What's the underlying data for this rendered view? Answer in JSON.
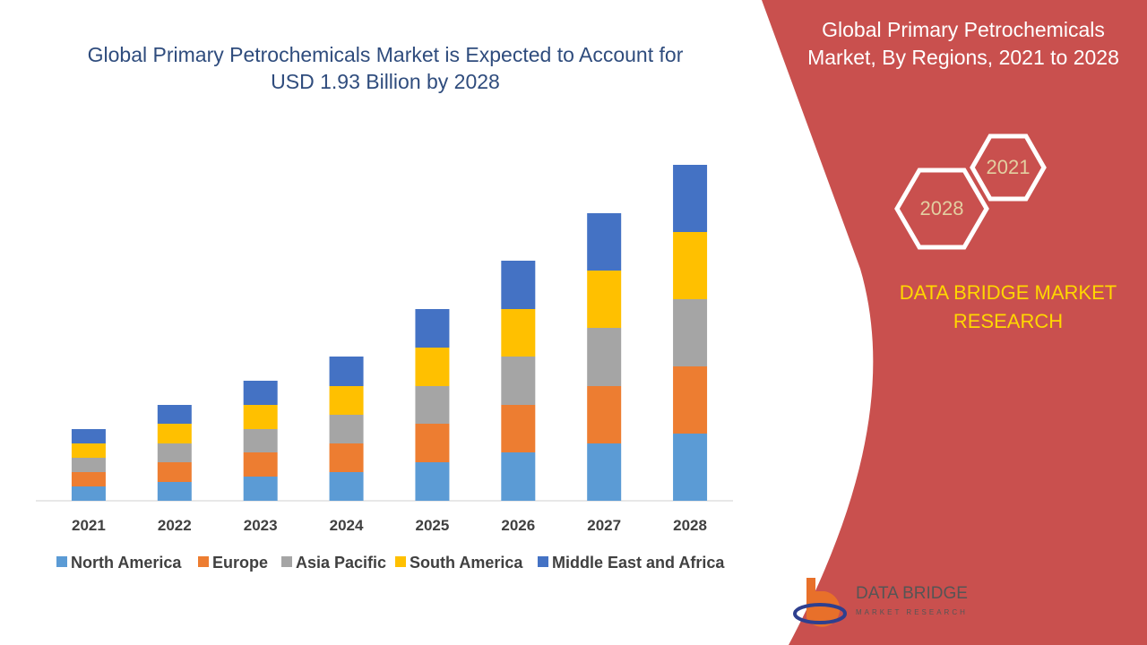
{
  "chart_data": {
    "type": "bar",
    "stacked": true,
    "title": "Global Primary Petrochemicals Market is Expected to Account for USD 1.93 Billion by 2028",
    "categories": [
      "2021",
      "2022",
      "2023",
      "2024",
      "2025",
      "2026",
      "2027",
      "2028"
    ],
    "series": [
      {
        "name": "North America",
        "color": "#5b9bd5",
        "values": [
          16,
          21,
          27,
          32,
          43,
          54,
          64,
          75
        ]
      },
      {
        "name": "Europe",
        "color": "#ed7d31",
        "values": [
          16,
          22,
          27,
          32,
          43,
          53,
          64,
          75
        ]
      },
      {
        "name": "Asia Pacific",
        "color": "#a5a5a5",
        "values": [
          16,
          21,
          26,
          32,
          42,
          54,
          65,
          75
        ]
      },
      {
        "name": "South America",
        "color": "#ffc000",
        "values": [
          16,
          22,
          27,
          32,
          43,
          53,
          64,
          75
        ]
      },
      {
        "name": "Middle East and Africa",
        "color": "#4472c4",
        "values": [
          16,
          21,
          27,
          33,
          43,
          54,
          64,
          75
        ]
      }
    ],
    "ylim": [
      0,
      400
    ]
  },
  "panel": {
    "title": "Global Primary Petrochemicals Market, By Regions, 2021 to 2028",
    "hexagons": [
      "2021",
      "2028"
    ],
    "brand": "DATA BRIDGE MARKET RESEARCH",
    "logo": {
      "name": "DATA BRIDGE",
      "tagline": "MARKET RESEARCH"
    }
  }
}
